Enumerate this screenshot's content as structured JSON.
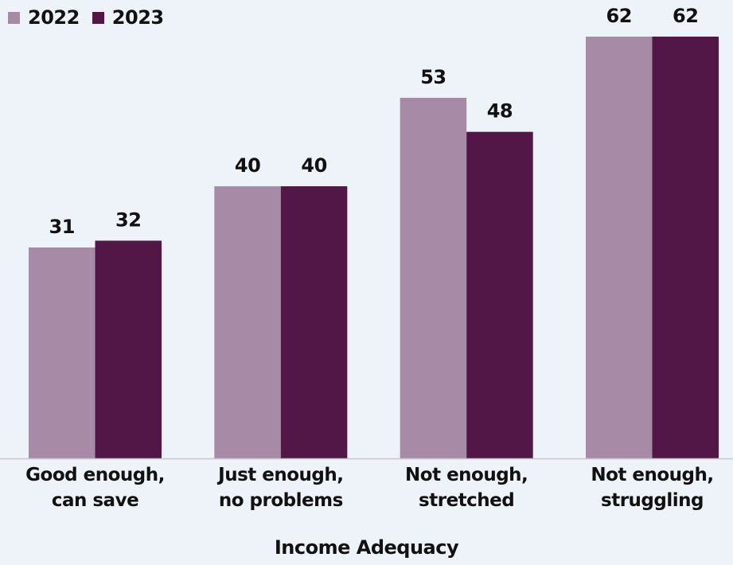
{
  "chart_data": {
    "type": "bar",
    "title": "",
    "xlabel": "Income Adequacy",
    "ylabel": "",
    "categories": [
      [
        "Good enough,",
        "can save"
      ],
      [
        "Just enough,",
        "no problems"
      ],
      [
        "Not enough,",
        "stretched"
      ],
      [
        "Not enough,",
        "struggling"
      ]
    ],
    "series": [
      {
        "name": "2022",
        "color": "#a78aa5",
        "values": [
          31,
          40,
          53,
          62
        ]
      },
      {
        "name": "2023",
        "color": "#521647",
        "values": [
          32,
          40,
          48,
          62
        ]
      }
    ],
    "ylim": [
      0,
      62
    ],
    "grid": false,
    "legend": "top-left",
    "data_labels": true
  }
}
